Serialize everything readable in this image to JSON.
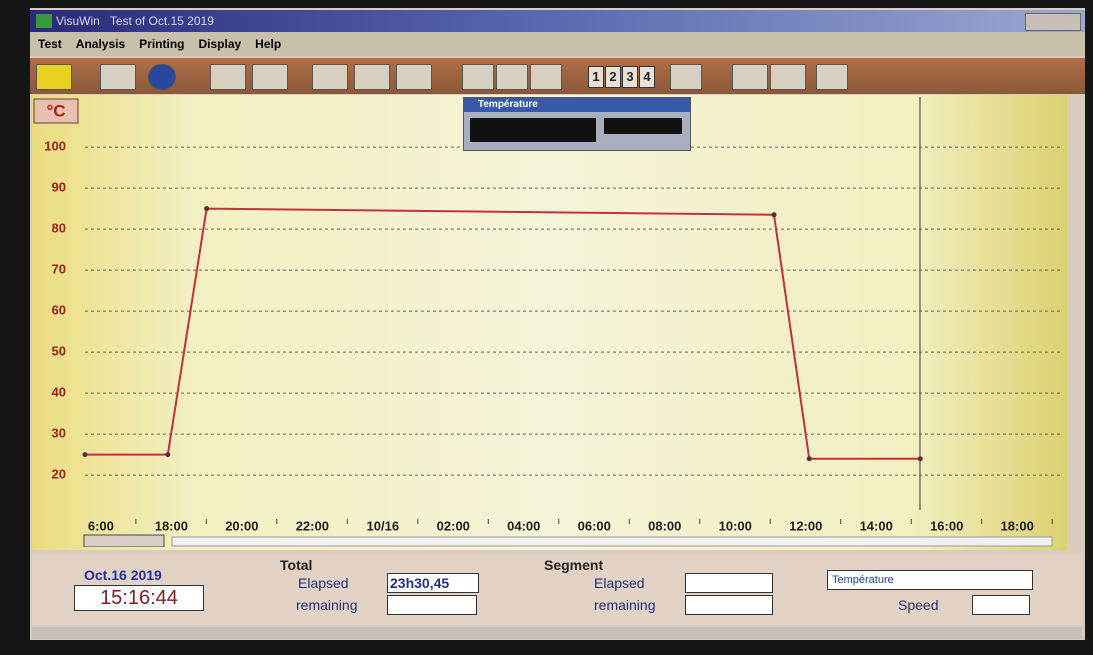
{
  "window": {
    "app": "VisuWin",
    "title": "Test of Oct.15 2019"
  },
  "menu": [
    "Test",
    "Analysis",
    "Printing",
    "Display",
    "Help"
  ],
  "toolbar": {
    "pages": [
      "1",
      "2",
      "3",
      "4"
    ]
  },
  "popup": {
    "title": "Température"
  },
  "chart_data": {
    "type": "line",
    "unit": "°C",
    "x": [
      -0.45,
      1.9,
      3.0,
      19.1,
      20.1,
      23.25
    ],
    "values": [
      25,
      25,
      85,
      83.5,
      24,
      24
    ],
    "color": "#c23040",
    "ylim": [
      11.5,
      111.5
    ],
    "yticks": [
      20,
      30,
      40,
      50,
      60,
      70,
      80,
      90,
      100
    ],
    "xlim": [
      -0.45,
      27.3
    ],
    "xticks": [
      {
        "value": 0,
        "label": "6:00"
      },
      {
        "value": 2,
        "label": "18:00"
      },
      {
        "value": 4,
        "label": "20:00"
      },
      {
        "value": 6,
        "label": "22:00"
      },
      {
        "value": 8,
        "label": "10/16"
      },
      {
        "value": 10,
        "label": "02:00"
      },
      {
        "value": 12,
        "label": "04:00"
      },
      {
        "value": 14,
        "label": "06:00"
      },
      {
        "value": 16,
        "label": "08:00"
      },
      {
        "value": 18,
        "label": "10:00"
      },
      {
        "value": 20,
        "label": "12:00"
      },
      {
        "value": 22,
        "label": "14:00"
      },
      {
        "value": 24,
        "label": "16:00"
      },
      {
        "value": 26,
        "label": "18:00"
      }
    ],
    "grid": true
  },
  "status": {
    "date": "Oct.16 2019",
    "time": "15:16:44",
    "total": {
      "title": "Total",
      "elapsed_label": "Elapsed",
      "elapsed": "23h30,45",
      "remaining_label": "remaining"
    },
    "segment": {
      "title": "Segment",
      "elapsed_label": "Elapsed",
      "remaining_label": "remaining",
      "channel": "Température",
      "speed_label": "Speed"
    }
  }
}
